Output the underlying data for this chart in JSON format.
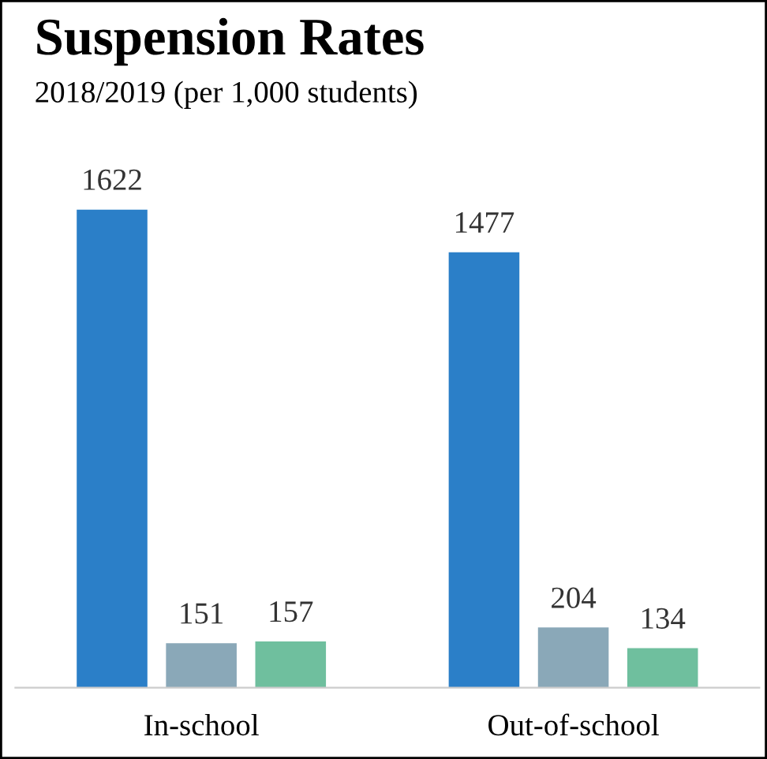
{
  "chart_data": {
    "type": "bar",
    "title": "Suspension Rates",
    "subtitle": "2018/2019 (per 1,000 students)",
    "categories": [
      "In-school",
      "Out-of-school"
    ],
    "series": [
      {
        "color": "#2b7fc8",
        "values": [
          1622,
          1477
        ]
      },
      {
        "color": "#8aa8b8",
        "values": [
          151,
          204
        ]
      },
      {
        "color": "#6fbf9e",
        "values": [
          157,
          134
        ]
      }
    ],
    "data_labels": true,
    "grid": false,
    "legend": false
  }
}
